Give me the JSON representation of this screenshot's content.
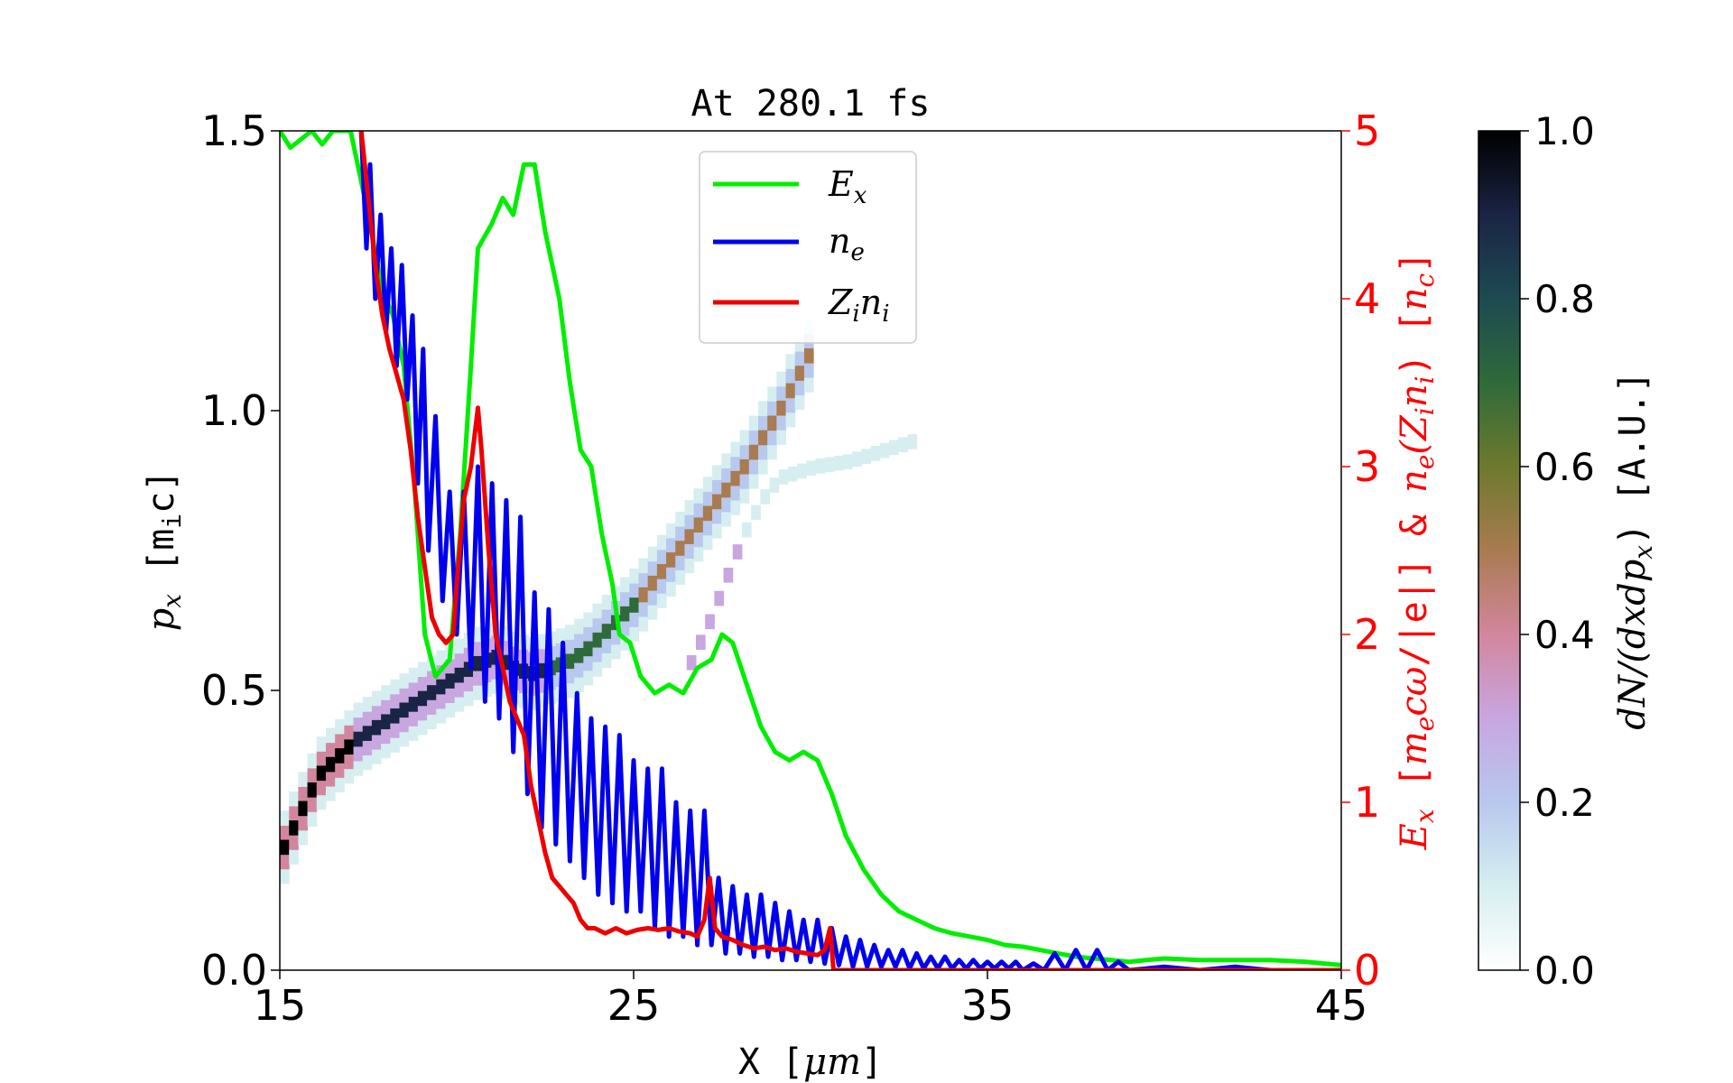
{
  "chart_data": {
    "type": "line",
    "title": "At 280.1 fs",
    "xlabel": "X [μm]",
    "ylabel_left": "p_x [m_i c]",
    "ylabel_right": "E_x [m_e cω/|e|] & n_e(Z_i n_i) [n_c]",
    "colorbar_label": "dN/(dxdp_x) [A.U.]",
    "xlim": [
      15,
      45
    ],
    "ylim_left": [
      0,
      1.5
    ],
    "ylim_right": [
      0,
      5
    ],
    "colorbar_range": [
      0,
      1
    ],
    "xticks": [
      "15",
      "25",
      "35",
      "45"
    ],
    "yticks_left": [
      "0.0",
      "0.5",
      "1.0",
      "1.5"
    ],
    "yticks_right": [
      "0",
      "1",
      "2",
      "3",
      "4",
      "5"
    ],
    "colorbar_ticks": [
      "0.0",
      "0.2",
      "0.4",
      "0.6",
      "0.8",
      "1.0"
    ],
    "legend": {
      "placement": "upper-center",
      "entries": [
        "E_x",
        "n_e",
        "Z_i n_i"
      ]
    },
    "colors": {
      "Ex": "#00ee00",
      "ne": "#0000ee",
      "Zini": "#ee0000",
      "right_axis": "#ff0000"
    },
    "series": [
      {
        "name": "E_x",
        "axis": "right",
        "color": "#00ee00",
        "points": [
          [
            15.0,
            5.0
          ],
          [
            15.3,
            4.9
          ],
          [
            15.6,
            4.95
          ],
          [
            15.9,
            5.0
          ],
          [
            16.2,
            4.92
          ],
          [
            16.5,
            5.0
          ],
          [
            17.0,
            5.0
          ],
          [
            17.5,
            4.5
          ],
          [
            17.9,
            4.05
          ],
          [
            18.2,
            3.9
          ],
          [
            18.5,
            3.6
          ],
          [
            18.8,
            2.9
          ],
          [
            19.1,
            2.0
          ],
          [
            19.4,
            1.75
          ],
          [
            19.8,
            1.85
          ],
          [
            20.1,
            2.6
          ],
          [
            20.4,
            3.6
          ],
          [
            20.6,
            4.3
          ],
          [
            21.0,
            4.45
          ],
          [
            21.3,
            4.6
          ],
          [
            21.6,
            4.5
          ],
          [
            21.9,
            4.8
          ],
          [
            22.2,
            4.8
          ],
          [
            22.5,
            4.4
          ],
          [
            22.9,
            4.0
          ],
          [
            23.2,
            3.5
          ],
          [
            23.5,
            3.1
          ],
          [
            23.8,
            3.0
          ],
          [
            24.1,
            2.6
          ],
          [
            24.4,
            2.3
          ],
          [
            24.6,
            2.0
          ],
          [
            24.9,
            1.95
          ],
          [
            25.2,
            1.75
          ],
          [
            25.6,
            1.65
          ],
          [
            26.0,
            1.7
          ],
          [
            26.4,
            1.65
          ],
          [
            26.8,
            1.8
          ],
          [
            27.2,
            1.85
          ],
          [
            27.5,
            2.0
          ],
          [
            27.8,
            1.95
          ],
          [
            28.2,
            1.7
          ],
          [
            28.6,
            1.45
          ],
          [
            29.0,
            1.3
          ],
          [
            29.4,
            1.25
          ],
          [
            29.8,
            1.3
          ],
          [
            30.2,
            1.25
          ],
          [
            30.6,
            1.05
          ],
          [
            31.0,
            0.8
          ],
          [
            31.5,
            0.6
          ],
          [
            32.0,
            0.45
          ],
          [
            32.5,
            0.35
          ],
          [
            33.0,
            0.3
          ],
          [
            33.5,
            0.25
          ],
          [
            34.0,
            0.22
          ],
          [
            34.5,
            0.2
          ],
          [
            35.0,
            0.18
          ],
          [
            35.5,
            0.15
          ],
          [
            36.0,
            0.14
          ],
          [
            36.5,
            0.12
          ],
          [
            37.0,
            0.1
          ],
          [
            37.5,
            0.08
          ],
          [
            38.0,
            0.07
          ],
          [
            38.5,
            0.06
          ],
          [
            39.0,
            0.05
          ],
          [
            39.5,
            0.06
          ],
          [
            40.0,
            0.07
          ],
          [
            41.0,
            0.06
          ],
          [
            42.0,
            0.06
          ],
          [
            43.0,
            0.06
          ],
          [
            44.0,
            0.05
          ],
          [
            45.0,
            0.03
          ]
        ]
      },
      {
        "name": "n_e",
        "axis": "right",
        "color": "#0000ee",
        "points": [
          [
            17.3,
            5.0
          ],
          [
            17.45,
            4.3
          ],
          [
            17.55,
            4.8
          ],
          [
            17.7,
            4.0
          ],
          [
            17.85,
            4.5
          ],
          [
            18.0,
            3.8
          ],
          [
            18.15,
            4.3
          ],
          [
            18.3,
            3.6
          ],
          [
            18.45,
            4.2
          ],
          [
            18.6,
            3.4
          ],
          [
            18.75,
            3.9
          ],
          [
            18.9,
            2.9
          ],
          [
            19.05,
            3.7
          ],
          [
            19.2,
            2.5
          ],
          [
            19.4,
            3.3
          ],
          [
            19.6,
            2.2
          ],
          [
            19.8,
            2.85
          ],
          [
            20.0,
            2.0
          ],
          [
            20.2,
            2.85
          ],
          [
            20.4,
            1.8
          ],
          [
            20.6,
            3.0
          ],
          [
            20.8,
            1.6
          ],
          [
            21.0,
            2.9
          ],
          [
            21.2,
            1.5
          ],
          [
            21.4,
            2.8
          ],
          [
            21.6,
            1.3
          ],
          [
            21.8,
            2.7
          ],
          [
            22.0,
            1.05
          ],
          [
            22.2,
            2.25
          ],
          [
            22.4,
            0.85
          ],
          [
            22.6,
            2.15
          ],
          [
            22.8,
            0.75
          ],
          [
            23.0,
            1.95
          ],
          [
            23.2,
            0.65
          ],
          [
            23.4,
            1.65
          ],
          [
            23.6,
            0.55
          ],
          [
            23.8,
            1.5
          ],
          [
            24.0,
            0.45
          ],
          [
            24.2,
            1.45
          ],
          [
            24.4,
            0.4
          ],
          [
            24.6,
            1.4
          ],
          [
            24.8,
            0.35
          ],
          [
            25.0,
            1.25
          ],
          [
            25.2,
            0.35
          ],
          [
            25.4,
            1.2
          ],
          [
            25.6,
            0.25
          ],
          [
            25.8,
            1.2
          ],
          [
            26.0,
            0.2
          ],
          [
            26.2,
            1.0
          ],
          [
            26.4,
            0.2
          ],
          [
            26.6,
            0.95
          ],
          [
            26.8,
            0.15
          ],
          [
            27.0,
            0.95
          ],
          [
            27.2,
            0.15
          ],
          [
            27.4,
            0.55
          ],
          [
            27.6,
            0.1
          ],
          [
            27.8,
            0.5
          ],
          [
            28.0,
            0.1
          ],
          [
            28.2,
            0.45
          ],
          [
            28.4,
            0.08
          ],
          [
            28.6,
            0.45
          ],
          [
            28.8,
            0.08
          ],
          [
            29.0,
            0.4
          ],
          [
            29.2,
            0.06
          ],
          [
            29.4,
            0.35
          ],
          [
            29.6,
            0.06
          ],
          [
            29.8,
            0.3
          ],
          [
            30.0,
            0.05
          ],
          [
            30.2,
            0.3
          ],
          [
            30.4,
            0.04
          ],
          [
            30.6,
            0.25
          ],
          [
            30.8,
            0.03
          ],
          [
            31.0,
            0.2
          ],
          [
            31.2,
            0.02
          ],
          [
            31.4,
            0.18
          ],
          [
            31.6,
            0.02
          ],
          [
            31.8,
            0.15
          ],
          [
            32.0,
            0.02
          ],
          [
            32.2,
            0.12
          ],
          [
            32.4,
            0.02
          ],
          [
            32.6,
            0.12
          ],
          [
            32.8,
            0.01
          ],
          [
            33.0,
            0.1
          ],
          [
            33.2,
            0.01
          ],
          [
            33.4,
            0.08
          ],
          [
            33.6,
            0.01
          ],
          [
            33.8,
            0.08
          ],
          [
            34.0,
            0.01
          ],
          [
            34.2,
            0.06
          ],
          [
            34.4,
            0.01
          ],
          [
            34.6,
            0.06
          ],
          [
            34.8,
            0.01
          ],
          [
            35.0,
            0.05
          ],
          [
            35.2,
            0.01
          ],
          [
            35.4,
            0.05
          ],
          [
            35.6,
            0.01
          ],
          [
            35.8,
            0.05
          ],
          [
            36.0,
            0.0
          ],
          [
            36.3,
            0.04
          ],
          [
            36.6,
            0.0
          ],
          [
            36.9,
            0.1
          ],
          [
            37.2,
            0.0
          ],
          [
            37.5,
            0.12
          ],
          [
            37.8,
            0.0
          ],
          [
            38.1,
            0.12
          ],
          [
            38.4,
            0.0
          ],
          [
            38.7,
            0.05
          ],
          [
            39.0,
            0.0
          ],
          [
            40.0,
            0.02
          ],
          [
            41.0,
            0.0
          ],
          [
            42.0,
            0.02
          ],
          [
            43.0,
            0.0
          ],
          [
            45.0,
            0.0
          ]
        ]
      },
      {
        "name": "Z_i n_i",
        "axis": "right",
        "color": "#ee0000",
        "points": [
          [
            17.3,
            5.0
          ],
          [
            17.5,
            4.6
          ],
          [
            17.7,
            4.2
          ],
          [
            17.9,
            3.9
          ],
          [
            18.1,
            3.7
          ],
          [
            18.3,
            3.55
          ],
          [
            18.5,
            3.4
          ],
          [
            18.7,
            3.1
          ],
          [
            18.9,
            2.7
          ],
          [
            19.1,
            2.4
          ],
          [
            19.3,
            2.1
          ],
          [
            19.5,
            2.0
          ],
          [
            19.7,
            1.95
          ],
          [
            19.9,
            2.0
          ],
          [
            20.0,
            2.3
          ],
          [
            20.2,
            2.8
          ],
          [
            20.4,
            3.0
          ],
          [
            20.6,
            3.35
          ],
          [
            20.7,
            3.1
          ],
          [
            20.9,
            2.5
          ],
          [
            21.1,
            2.0
          ],
          [
            21.3,
            1.8
          ],
          [
            21.5,
            1.6
          ],
          [
            21.7,
            1.5
          ],
          [
            21.9,
            1.4
          ],
          [
            22.1,
            1.1
          ],
          [
            22.3,
            0.9
          ],
          [
            22.5,
            0.7
          ],
          [
            22.7,
            0.55
          ],
          [
            22.9,
            0.5
          ],
          [
            23.1,
            0.45
          ],
          [
            23.3,
            0.4
          ],
          [
            23.5,
            0.3
          ],
          [
            23.7,
            0.25
          ],
          [
            23.9,
            0.25
          ],
          [
            24.2,
            0.22
          ],
          [
            24.5,
            0.25
          ],
          [
            24.8,
            0.22
          ],
          [
            25.1,
            0.24
          ],
          [
            25.4,
            0.25
          ],
          [
            25.7,
            0.24
          ],
          [
            26.0,
            0.25
          ],
          [
            26.3,
            0.23
          ],
          [
            26.6,
            0.22
          ],
          [
            26.8,
            0.2
          ],
          [
            27.0,
            0.3
          ],
          [
            27.15,
            0.55
          ],
          [
            27.3,
            0.25
          ],
          [
            27.5,
            0.2
          ],
          [
            27.8,
            0.18
          ],
          [
            28.1,
            0.15
          ],
          [
            28.4,
            0.13
          ],
          [
            28.7,
            0.14
          ],
          [
            29.0,
            0.12
          ],
          [
            29.3,
            0.13
          ],
          [
            29.6,
            0.11
          ],
          [
            29.9,
            0.1
          ],
          [
            30.2,
            0.09
          ],
          [
            30.4,
            0.12
          ],
          [
            30.55,
            0.25
          ],
          [
            30.65,
            0.0
          ],
          [
            31.0,
            0.0
          ],
          [
            35.0,
            0.0
          ],
          [
            45.0,
            0.0
          ]
        ]
      }
    ],
    "phase_space": {
      "axis": "left",
      "main_branch": [
        [
          15.0,
          0.22
        ],
        [
          15.3,
          0.26
        ],
        [
          15.6,
          0.3
        ],
        [
          16.0,
          0.35
        ],
        [
          16.5,
          0.38
        ],
        [
          17.0,
          0.41
        ],
        [
          17.5,
          0.43
        ],
        [
          18.0,
          0.45
        ],
        [
          18.5,
          0.47
        ],
        [
          19.0,
          0.49
        ],
        [
          19.5,
          0.51
        ],
        [
          20.0,
          0.53
        ],
        [
          20.5,
          0.55
        ],
        [
          21.0,
          0.56
        ],
        [
          21.5,
          0.54
        ],
        [
          22.0,
          0.53
        ],
        [
          22.5,
          0.54
        ],
        [
          23.0,
          0.55
        ],
        [
          23.5,
          0.57
        ],
        [
          24.0,
          0.6
        ],
        [
          24.5,
          0.63
        ],
        [
          25.0,
          0.66
        ],
        [
          25.5,
          0.7
        ],
        [
          26.0,
          0.74
        ],
        [
          26.5,
          0.78
        ],
        [
          27.0,
          0.82
        ],
        [
          27.5,
          0.86
        ],
        [
          28.0,
          0.9
        ],
        [
          28.5,
          0.95
        ],
        [
          29.0,
          1.0
        ],
        [
          29.5,
          1.06
        ],
        [
          30.0,
          1.12
        ]
      ],
      "secondary_branch": [
        [
          26.5,
          0.55
        ],
        [
          27.0,
          0.62
        ],
        [
          27.5,
          0.7
        ],
        [
          28.0,
          0.78
        ],
        [
          28.5,
          0.84
        ],
        [
          29.0,
          0.88
        ],
        [
          30.0,
          0.9
        ],
        [
          31.0,
          0.91
        ],
        [
          32.0,
          0.93
        ],
        [
          33.0,
          0.95
        ]
      ]
    }
  }
}
